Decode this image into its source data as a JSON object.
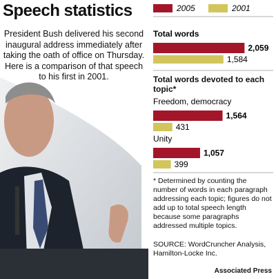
{
  "chart_data": {
    "type": "bar",
    "title": "Speech statistics",
    "text": "President Bush delivered his second inaugural address immediately after taking the oath of office on Thursday. Here is a comparison of that speech to his first in 2001.",
    "subtitle": "Total words devoted to each topic*",
    "categories": [
      "Total words",
      "Freedom, democracy",
      "Unity"
    ],
    "series": [
      {
        "name": "2005",
        "color": "#a3162a",
        "values": [
          2059,
          1564,
          1057
        ],
        "value_labels": [
          "2,059",
          "1,564",
          "1,057"
        ]
      },
      {
        "name": "2001",
        "color": "#d2c55c",
        "values": [
          1584,
          431,
          399
        ],
        "value_labels": [
          "1,584",
          "431",
          "399"
        ]
      }
    ],
    "footnote": "* Determined by counting the number of words in each paragraph addressing each topic; figures do not add up to total speech length because some paragraphs addressed multiple topics.",
    "source": "SOURCE: WordCruncher Analysis, Hamilton-Locke Inc.",
    "credit": "Associated Press"
  }
}
